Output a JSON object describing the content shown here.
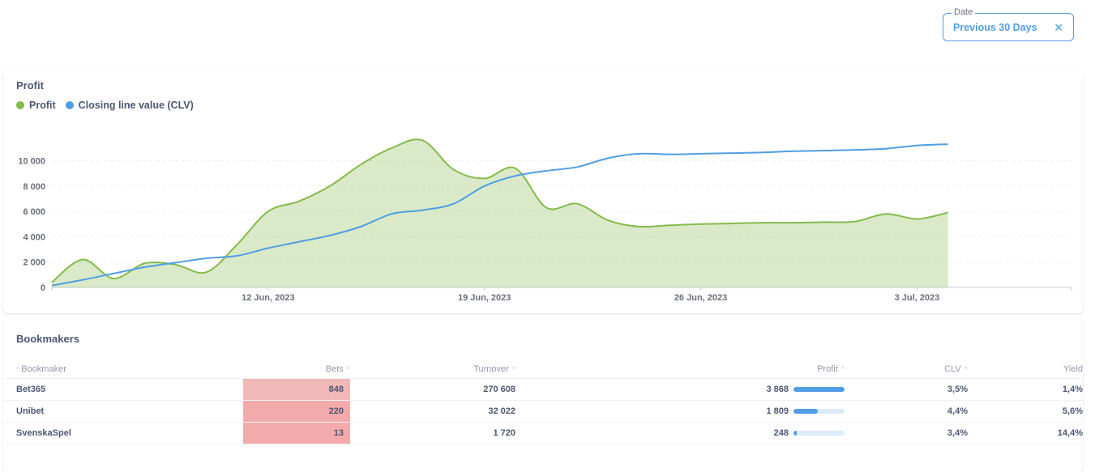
{
  "filter": {
    "label": "Date",
    "value": "Previous 30 Days",
    "clear_icon": "close-icon"
  },
  "profit_card": {
    "title": "Profit",
    "legend": [
      {
        "name": "Profit",
        "color": "#84bb4c"
      },
      {
        "name": "Closing line value (CLV)",
        "color": "#509ee3"
      }
    ]
  },
  "chart_data": {
    "type": "area",
    "title": "Profit",
    "x_ticks": [
      "12 Jun, 2023",
      "19 Jun, 2023",
      "26 Jun, 2023",
      "3 Jul, 2023"
    ],
    "y_ticks": [
      "0",
      "2 000",
      "4 000",
      "6 000",
      "8 000",
      "10 000"
    ],
    "ylim": [
      0,
      11500
    ],
    "xlim": [
      "2023-06-05",
      "2023-07-08"
    ],
    "grid": true,
    "series": [
      {
        "name": "Profit",
        "type": "area",
        "color": "#84bb4c",
        "points": [
          [
            "2023-06-05",
            400
          ],
          [
            "2023-06-06",
            2200
          ],
          [
            "2023-06-07",
            700
          ],
          [
            "2023-06-08",
            1900
          ],
          [
            "2023-06-09",
            1800
          ],
          [
            "2023-06-10",
            1200
          ],
          [
            "2023-06-11",
            3400
          ],
          [
            "2023-06-12",
            6000
          ],
          [
            "2023-06-13",
            6800
          ],
          [
            "2023-06-14",
            8000
          ],
          [
            "2023-06-15",
            9700
          ],
          [
            "2023-06-16",
            11000
          ],
          [
            "2023-06-17",
            11600
          ],
          [
            "2023-06-18",
            9300
          ],
          [
            "2023-06-19",
            8600
          ],
          [
            "2023-06-20",
            9400
          ],
          [
            "2023-06-21",
            6300
          ],
          [
            "2023-06-22",
            6600
          ],
          [
            "2023-06-23",
            5300
          ],
          [
            "2023-06-24",
            4800
          ],
          [
            "2023-06-25",
            4900
          ],
          [
            "2023-06-26",
            5000
          ],
          [
            "2023-06-27",
            5050
          ],
          [
            "2023-06-28",
            5100
          ],
          [
            "2023-06-29",
            5100
          ],
          [
            "2023-06-30",
            5150
          ],
          [
            "2023-07-01",
            5200
          ],
          [
            "2023-07-02",
            5800
          ],
          [
            "2023-07-03",
            5400
          ],
          [
            "2023-07-04",
            5900
          ]
        ]
      },
      {
        "name": "Closing line value (CLV)",
        "type": "line",
        "color": "#509ee3",
        "points": [
          [
            "2023-06-05",
            150
          ],
          [
            "2023-06-06",
            600
          ],
          [
            "2023-06-07",
            1100
          ],
          [
            "2023-06-08",
            1600
          ],
          [
            "2023-06-09",
            1950
          ],
          [
            "2023-06-10",
            2300
          ],
          [
            "2023-06-11",
            2500
          ],
          [
            "2023-06-12",
            3100
          ],
          [
            "2023-06-13",
            3600
          ],
          [
            "2023-06-14",
            4100
          ],
          [
            "2023-06-15",
            4800
          ],
          [
            "2023-06-16",
            5800
          ],
          [
            "2023-06-17",
            6100
          ],
          [
            "2023-06-18",
            6600
          ],
          [
            "2023-06-19",
            8000
          ],
          [
            "2023-06-20",
            8800
          ],
          [
            "2023-06-21",
            9200
          ],
          [
            "2023-06-22",
            9500
          ],
          [
            "2023-06-23",
            10200
          ],
          [
            "2023-06-24",
            10550
          ],
          [
            "2023-06-25",
            10500
          ],
          [
            "2023-06-26",
            10550
          ],
          [
            "2023-06-27",
            10600
          ],
          [
            "2023-06-28",
            10650
          ],
          [
            "2023-06-29",
            10750
          ],
          [
            "2023-06-30",
            10800
          ],
          [
            "2023-07-01",
            10850
          ],
          [
            "2023-07-02",
            10950
          ],
          [
            "2023-07-03",
            11200
          ],
          [
            "2023-07-04",
            11300
          ]
        ]
      }
    ]
  },
  "bookmakers": {
    "title": "Bookmakers",
    "columns": [
      "Bookmaker",
      "Bets",
      "Turnover",
      "Profit",
      "CLV",
      "Yield"
    ],
    "rows": [
      {
        "bookmaker": "Bet365",
        "bets": "848",
        "turnover": "270 608",
        "profit": "3 868",
        "profit_fraction": 1.0,
        "clv": "3,5%",
        "yield": "1,4%",
        "bets_color": "#f1b8b8"
      },
      {
        "bookmaker": "Unibet",
        "bets": "220",
        "turnover": "32 022",
        "profit": "1 809",
        "profit_fraction": 0.47,
        "clv": "4,4%",
        "yield": "5,6%",
        "bets_color": "#f2aaaa"
      },
      {
        "bookmaker": "SvenskaSpel",
        "bets": "13",
        "turnover": "1 720",
        "profit": "248",
        "profit_fraction": 0.064,
        "clv": "3,4%",
        "yield": "14,4%",
        "bets_color": "#f2aaaa"
      }
    ]
  }
}
